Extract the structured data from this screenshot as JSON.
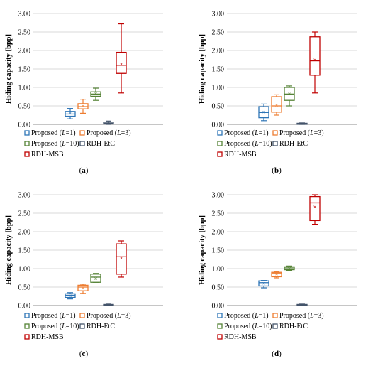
{
  "chart_data": [
    {
      "type": "box",
      "panel_label": "(a)",
      "ylabel": "Hiding capacity [bpp]",
      "ylim": [
        0,
        3
      ],
      "yticks": [
        "0.00",
        "0.50",
        "1.00",
        "1.50",
        "2.00",
        "2.50",
        "3.00"
      ],
      "grid": true,
      "legend_position": "bottom",
      "series": [
        {
          "name": "Proposed (L=1)",
          "color": "#2E75B6",
          "min": 0.15,
          "q1": 0.22,
          "median": 0.28,
          "q3": 0.35,
          "max": 0.43,
          "mean": 0.3
        },
        {
          "name": "Proposed (L=3)",
          "color": "#ED7D31",
          "min": 0.3,
          "q1": 0.42,
          "median": 0.48,
          "q3": 0.56,
          "max": 0.68,
          "mean": 0.5
        },
        {
          "name": "Proposed (L=10)",
          "color": "#548235",
          "min": 0.65,
          "q1": 0.76,
          "median": 0.82,
          "q3": 0.88,
          "max": 0.98,
          "mean": 0.83
        },
        {
          "name": "RDH-EtC",
          "color": "#44546A",
          "min": 0.0,
          "q1": 0.01,
          "median": 0.03,
          "q3": 0.06,
          "max": 0.09,
          "mean": 0.03
        },
        {
          "name": "RDH-MSB",
          "color": "#C00000",
          "min": 0.85,
          "q1": 1.38,
          "median": 1.6,
          "q3": 1.95,
          "max": 2.72,
          "mean": 1.63
        }
      ]
    },
    {
      "type": "box",
      "panel_label": "(b)",
      "ylabel": "Hiding capacity [bpp]",
      "ylim": [
        0,
        3
      ],
      "yticks": [
        "0.00",
        "0.50",
        "1.00",
        "1.50",
        "2.00",
        "2.50",
        "3.00"
      ],
      "grid": true,
      "legend_position": "bottom",
      "series": [
        {
          "name": "Proposed (L=1)",
          "color": "#2E75B6",
          "min": 0.1,
          "q1": 0.18,
          "median": 0.32,
          "q3": 0.48,
          "max": 0.55,
          "mean": 0.33
        },
        {
          "name": "Proposed (L=3)",
          "color": "#ED7D31",
          "min": 0.25,
          "q1": 0.33,
          "median": 0.5,
          "q3": 0.75,
          "max": 0.8,
          "mean": 0.52
        },
        {
          "name": "Proposed (L=10)",
          "color": "#548235",
          "min": 0.5,
          "q1": 0.65,
          "median": 0.82,
          "q3": 1.0,
          "max": 1.04,
          "mean": 0.82
        },
        {
          "name": "RDH-EtC",
          "color": "#44546A",
          "min": 0.0,
          "q1": 0.01,
          "median": 0.02,
          "q3": 0.03,
          "max": 0.04,
          "mean": 0.02
        },
        {
          "name": "RDH-MSB",
          "color": "#C00000",
          "min": 0.85,
          "q1": 1.33,
          "median": 1.72,
          "q3": 2.37,
          "max": 2.5,
          "mean": 1.75
        }
      ]
    },
    {
      "type": "box",
      "panel_label": "(c)",
      "ylabel": "Hiding capacity [bpp]",
      "ylim": [
        0,
        3
      ],
      "yticks": [
        "0.00",
        "0.50",
        "1.00",
        "1.50",
        "2.00",
        "2.50",
        "3.00"
      ],
      "grid": true,
      "legend_position": "bottom",
      "series": [
        {
          "name": "Proposed (L=1)",
          "color": "#2E75B6",
          "min": 0.18,
          "q1": 0.22,
          "median": 0.28,
          "q3": 0.32,
          "max": 0.35,
          "mean": 0.27
        },
        {
          "name": "Proposed (L=3)",
          "color": "#ED7D31",
          "min": 0.33,
          "q1": 0.4,
          "median": 0.5,
          "q3": 0.55,
          "max": 0.58,
          "mean": 0.47
        },
        {
          "name": "Proposed (L=10)",
          "color": "#548235",
          "min": 0.63,
          "q1": 0.63,
          "median": 0.77,
          "q3": 0.85,
          "max": 0.87,
          "mean": 0.73
        },
        {
          "name": "RDH-EtC",
          "color": "#44546A",
          "min": 0.0,
          "q1": 0.01,
          "median": 0.02,
          "q3": 0.03,
          "max": 0.04,
          "mean": 0.02
        },
        {
          "name": "RDH-MSB",
          "color": "#C00000",
          "min": 0.77,
          "q1": 0.85,
          "median": 1.32,
          "q3": 1.67,
          "max": 1.75,
          "mean": 1.28
        }
      ]
    },
    {
      "type": "box",
      "panel_label": "(d)",
      "ylabel": "Hiding capacity [bpp]",
      "ylim": [
        0,
        3
      ],
      "yticks": [
        "0.00",
        "0.50",
        "1.00",
        "1.50",
        "2.00",
        "2.50",
        "3.00"
      ],
      "grid": true,
      "legend_position": "bottom",
      "series": [
        {
          "name": "Proposed (L=1)",
          "color": "#2E75B6",
          "min": 0.48,
          "q1": 0.53,
          "median": 0.62,
          "q3": 0.67,
          "max": 0.68,
          "mean": 0.6
        },
        {
          "name": "Proposed (L=3)",
          "color": "#ED7D31",
          "min": 0.75,
          "q1": 0.78,
          "median": 0.88,
          "q3": 0.9,
          "max": 0.92,
          "mean": 0.85
        },
        {
          "name": "Proposed (L=10)",
          "color": "#548235",
          "min": 0.95,
          "q1": 0.97,
          "median": 1.02,
          "q3": 1.05,
          "max": 1.07,
          "mean": 1.01
        },
        {
          "name": "RDH-EtC",
          "color": "#44546A",
          "min": 0.0,
          "q1": 0.01,
          "median": 0.02,
          "q3": 0.03,
          "max": 0.04,
          "mean": 0.02
        },
        {
          "name": "RDH-MSB",
          "color": "#C00000",
          "min": 2.2,
          "q1": 2.3,
          "median": 2.78,
          "q3": 2.95,
          "max": 3.0,
          "mean": 2.67
        }
      ]
    }
  ]
}
